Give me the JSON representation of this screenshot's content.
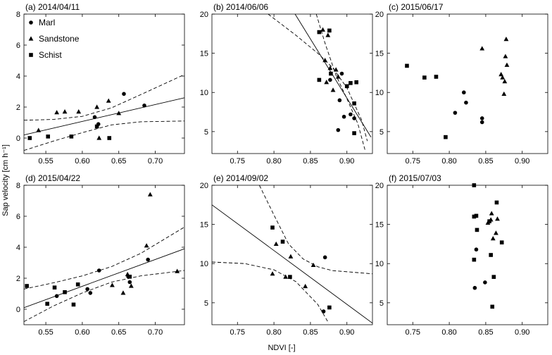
{
  "figure": {
    "ylabel": "Sap velocity [cm h⁻¹]",
    "xlabel": "NDVI [-]",
    "legend": [
      "Marl",
      "Sandstone",
      "Schist"
    ]
  },
  "chart_data": [
    {
      "panel": "(a)",
      "title": "2014/04/11",
      "type": "scatter",
      "xlim": [
        0.52,
        0.74
      ],
      "ylim": [
        -1,
        8
      ],
      "xticks": [
        0.55,
        0.6,
        0.65,
        0.7
      ],
      "xticklabels": [
        "0.55",
        "0.60",
        "0.65",
        "0.70"
      ],
      "yticks": [
        0,
        2,
        4,
        6,
        8
      ],
      "yticklabels": [
        "0",
        "2",
        "4",
        "6",
        "8"
      ],
      "legend": "top-left",
      "series": [
        {
          "name": "Marl",
          "marker": "circle",
          "points": [
            [
              0.617,
              1.35
            ],
            [
              0.622,
              0.9
            ],
            [
              0.657,
              2.85
            ],
            [
              0.685,
              2.1
            ]
          ]
        },
        {
          "name": "Sandstone",
          "marker": "triangle",
          "points": [
            [
              0.54,
              0.5
            ],
            [
              0.565,
              1.65
            ],
            [
              0.576,
              1.7
            ],
            [
              0.595,
              1.7
            ],
            [
              0.62,
              2.0
            ],
            [
              0.623,
              0.0
            ],
            [
              0.636,
              2.4
            ],
            [
              0.65,
              1.6
            ]
          ]
        },
        {
          "name": "Schist",
          "marker": "square",
          "points": [
            [
              0.528,
              0.0
            ],
            [
              0.553,
              0.1
            ],
            [
              0.585,
              0.1
            ],
            [
              0.62,
              0.75
            ],
            [
              0.637,
              0.0
            ]
          ]
        }
      ],
      "fit": [
        [
          0.52,
          0.2
        ],
        [
          0.74,
          2.6
        ]
      ],
      "ci_upper": [
        [
          0.52,
          1.15
        ],
        [
          0.56,
          1.2
        ],
        [
          0.6,
          1.4
        ],
        [
          0.64,
          1.95
        ],
        [
          0.68,
          2.8
        ],
        [
          0.74,
          4.1
        ]
      ],
      "ci_lower": [
        [
          0.52,
          -0.8
        ],
        [
          0.56,
          -0.2
        ],
        [
          0.6,
          0.35
        ],
        [
          0.64,
          0.85
        ],
        [
          0.68,
          1.05
        ],
        [
          0.74,
          1.1
        ]
      ]
    },
    {
      "panel": "(b)",
      "title": "2014/06/06",
      "type": "scatter",
      "xlim": [
        0.715,
        0.935
      ],
      "ylim": [
        2.2,
        20
      ],
      "xticks": [
        0.75,
        0.8,
        0.85,
        0.9
      ],
      "xticklabels": [
        "0.75",
        "0.80",
        "0.85",
        "0.90"
      ],
      "yticks": [
        5,
        10,
        15,
        20
      ],
      "yticklabels": [
        "5",
        "10",
        "15",
        "20"
      ],
      "series": [
        {
          "name": "Marl",
          "marker": "circle",
          "points": [
            [
              0.877,
              11.6
            ],
            [
              0.888,
              5.2
            ],
            [
              0.89,
              9.0
            ],
            [
              0.893,
              12.4
            ],
            [
              0.896,
              6.9
            ],
            [
              0.905,
              7.2
            ],
            [
              0.91,
              6.7
            ]
          ]
        },
        {
          "name": "Sandstone",
          "marker": "triangle",
          "points": [
            [
              0.867,
              18.0
            ],
            [
              0.87,
              14.1
            ],
            [
              0.872,
              11.3
            ],
            [
              0.874,
              17.3
            ],
            [
              0.877,
              13.1
            ],
            [
              0.881,
              10.3
            ],
            [
              0.885,
              12.9
            ],
            [
              0.888,
              12.0
            ]
          ]
        },
        {
          "name": "Schist",
          "marker": "square",
          "points": [
            [
              0.862,
              17.7
            ],
            [
              0.862,
              11.6
            ],
            [
              0.876,
              17.9
            ],
            [
              0.878,
              12.4
            ],
            [
              0.9,
              10.8
            ],
            [
              0.905,
              11.2
            ],
            [
              0.91,
              8.6
            ],
            [
              0.913,
              11.3
            ],
            [
              0.91,
              4.8
            ]
          ]
        }
      ],
      "fit": [
        [
          0.829,
          20.0
        ],
        [
          0.933,
          4.3
        ]
      ],
      "ci_upper": [
        [
          0.792,
          20.0
        ],
        [
          0.83,
          17.3
        ],
        [
          0.86,
          15.0
        ],
        [
          0.88,
          13.2
        ],
        [
          0.9,
          10.6
        ],
        [
          0.92,
          6.5
        ],
        [
          0.928,
          3.8
        ]
      ],
      "ci_lower": [
        [
          0.858,
          20.0
        ],
        [
          0.87,
          16.3
        ],
        [
          0.885,
          12.2
        ],
        [
          0.9,
          9.2
        ],
        [
          0.915,
          6.0
        ],
        [
          0.925,
          2.6
        ]
      ]
    },
    {
      "panel": "(c)",
      "title": "2015/06/17",
      "type": "scatter",
      "xlim": [
        0.715,
        0.935
      ],
      "ylim": [
        2.2,
        20
      ],
      "xticks": [
        0.75,
        0.8,
        0.85,
        0.9
      ],
      "xticklabels": [
        "0.75",
        "0.80",
        "0.85",
        "0.90"
      ],
      "yticks": [
        5,
        10,
        15,
        20
      ],
      "yticklabels": [
        "5",
        "10",
        "15",
        "20"
      ],
      "series": [
        {
          "name": "Marl",
          "marker": "circle",
          "points": [
            [
              0.808,
              7.4
            ],
            [
              0.82,
              10.0
            ],
            [
              0.823,
              8.7
            ],
            [
              0.845,
              6.7
            ],
            [
              0.845,
              6.2
            ]
          ]
        },
        {
          "name": "Sandstone",
          "marker": "triangle",
          "points": [
            [
              0.845,
              15.6
            ],
            [
              0.871,
              12.3
            ],
            [
              0.873,
              11.9
            ],
            [
              0.875,
              9.8
            ],
            [
              0.876,
              11.4
            ],
            [
              0.877,
              14.6
            ],
            [
              0.878,
              16.8
            ],
            [
              0.879,
              13.5
            ]
          ]
        },
        {
          "name": "Schist",
          "marker": "square",
          "points": [
            [
              0.742,
              13.4
            ],
            [
              0.766,
              11.9
            ],
            [
              0.782,
              12.0
            ],
            [
              0.795,
              4.3
            ]
          ]
        }
      ]
    },
    {
      "panel": "(d)",
      "title": "2015/04/22",
      "type": "scatter",
      "xlim": [
        0.52,
        0.74
      ],
      "ylim": [
        -1,
        8
      ],
      "xticks": [
        0.55,
        0.6,
        0.65,
        0.7
      ],
      "xticklabels": [
        "0.55",
        "0.60",
        "0.65",
        "0.70"
      ],
      "yticks": [
        0,
        2,
        4,
        6,
        8
      ],
      "yticklabels": [
        "0",
        "2",
        "4",
        "6",
        "8"
      ],
      "series": [
        {
          "name": "Marl",
          "marker": "circle",
          "points": [
            [
              0.565,
              0.85
            ],
            [
              0.607,
              1.3
            ],
            [
              0.611,
              1.05
            ],
            [
              0.623,
              2.5
            ],
            [
              0.663,
              2.1
            ],
            [
              0.665,
              1.75
            ],
            [
              0.69,
              3.2
            ]
          ]
        },
        {
          "name": "Sandstone",
          "marker": "triangle",
          "points": [
            [
              0.641,
              1.55
            ],
            [
              0.656,
              1.05
            ],
            [
              0.662,
              2.25
            ],
            [
              0.667,
              1.5
            ],
            [
              0.688,
              4.1
            ],
            [
              0.693,
              7.4
            ],
            [
              0.73,
              2.45
            ]
          ]
        },
        {
          "name": "Schist",
          "marker": "square",
          "points": [
            [
              0.524,
              1.5
            ],
            [
              0.552,
              0.35
            ],
            [
              0.562,
              1.4
            ],
            [
              0.576,
              1.1
            ],
            [
              0.588,
              0.3
            ],
            [
              0.594,
              1.6
            ],
            [
              0.665,
              2.1
            ]
          ]
        }
      ],
      "fit": [
        [
          0.52,
          0.1
        ],
        [
          0.74,
          3.9
        ]
      ],
      "ci_upper": [
        [
          0.52,
          1.3
        ],
        [
          0.56,
          1.7
        ],
        [
          0.6,
          2.15
        ],
        [
          0.64,
          2.75
        ],
        [
          0.68,
          3.6
        ],
        [
          0.74,
          5.3
        ]
      ],
      "ci_lower": [
        [
          0.52,
          -0.8
        ],
        [
          0.56,
          0.2
        ],
        [
          0.6,
          1.05
        ],
        [
          0.64,
          1.75
        ],
        [
          0.68,
          2.15
        ],
        [
          0.74,
          2.5
        ]
      ]
    },
    {
      "panel": "(e)",
      "title": "2014/09/02",
      "type": "scatter",
      "xlim": [
        0.715,
        0.935
      ],
      "ylim": [
        2.2,
        20
      ],
      "xticks": [
        0.75,
        0.8,
        0.85,
        0.9
      ],
      "xticklabels": [
        "0.75",
        "0.80",
        "0.85",
        "0.90"
      ],
      "yticks": [
        5,
        10,
        15,
        20
      ],
      "yticklabels": [
        "5",
        "10",
        "15",
        "20"
      ],
      "series": [
        {
          "name": "Marl",
          "marker": "circle",
          "points": [
            [
              0.868,
              3.9
            ],
            [
              0.87,
              10.8
            ]
          ]
        },
        {
          "name": "Sandstone",
          "marker": "triangle",
          "points": [
            [
              0.798,
              8.7
            ],
            [
              0.803,
              12.5
            ],
            [
              0.816,
              8.3
            ],
            [
              0.823,
              10.9
            ],
            [
              0.843,
              7.1
            ],
            [
              0.854,
              9.8
            ]
          ]
        },
        {
          "name": "Schist",
          "marker": "square",
          "points": [
            [
              0.798,
              14.6
            ],
            [
              0.812,
              12.8
            ],
            [
              0.822,
              8.3
            ],
            [
              0.876,
              4.4
            ]
          ]
        }
      ],
      "fit": [
        [
          0.715,
          17.5
        ],
        [
          0.935,
          2.4
        ]
      ],
      "ci_upper": [
        [
          0.78,
          20.0
        ],
        [
          0.8,
          16.2
        ],
        [
          0.82,
          12.5
        ],
        [
          0.84,
          10.6
        ],
        [
          0.86,
          9.6
        ],
        [
          0.88,
          9.1
        ],
        [
          0.935,
          8.7
        ]
      ],
      "ci_lower": [
        [
          0.715,
          10.2
        ],
        [
          0.76,
          10.0
        ],
        [
          0.8,
          9.2
        ],
        [
          0.83,
          7.7
        ],
        [
          0.86,
          4.8
        ],
        [
          0.875,
          2.4
        ]
      ]
    },
    {
      "panel": "(f)",
      "title": "2015/07/03",
      "type": "scatter",
      "xlim": [
        0.715,
        0.935
      ],
      "ylim": [
        2.2,
        20
      ],
      "xticks": [
        0.75,
        0.8,
        0.85,
        0.9
      ],
      "xticklabels": [
        "0.75",
        "0.80",
        "0.85",
        "0.90"
      ],
      "yticks": [
        5,
        10,
        15,
        20
      ],
      "yticklabels": [
        "5",
        "10",
        "15",
        "20"
      ],
      "series": [
        {
          "name": "Marl",
          "marker": "circle",
          "points": [
            [
              0.835,
              6.9
            ],
            [
              0.837,
              11.8
            ],
            [
              0.849,
              7.6
            ]
          ]
        },
        {
          "name": "Sandstone",
          "marker": "triangle",
          "points": [
            [
              0.853,
              15.2
            ],
            [
              0.857,
              15.6
            ],
            [
              0.858,
              16.4
            ],
            [
              0.86,
              13.2
            ],
            [
              0.864,
              13.9
            ],
            [
              0.866,
              15.7
            ]
          ]
        },
        {
          "name": "Schist",
          "marker": "square",
          "points": [
            [
              0.834,
              20.0
            ],
            [
              0.834,
              16.0
            ],
            [
              0.837,
              16.1
            ],
            [
              0.834,
              10.5
            ],
            [
              0.838,
              14.3
            ],
            [
              0.855,
              15.4
            ],
            [
              0.857,
              11.1
            ],
            [
              0.859,
              4.5
            ],
            [
              0.861,
              8.3
            ],
            [
              0.865,
              17.8
            ],
            [
              0.872,
              12.7
            ]
          ]
        }
      ]
    }
  ]
}
